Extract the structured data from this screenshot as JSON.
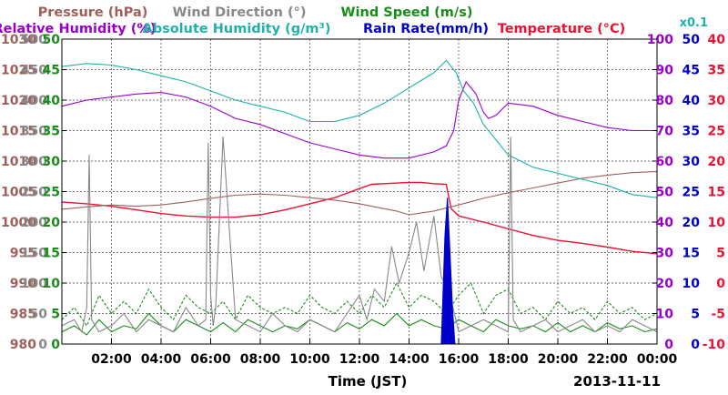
{
  "chart_data": {
    "type": "line",
    "title_rows": [
      [
        {
          "text": "Pressure (hPa)",
          "color": "#a0605a"
        },
        {
          "text": "Wind Direction (°)",
          "color": "#888888"
        },
        {
          "text": "Wind Speed (m/s)",
          "color": "#1a8c1a"
        }
      ],
      [
        {
          "text": "Relative Humidity (%)",
          "color": "#9900cc"
        },
        {
          "text": "Absolute Humidity (g/m³)",
          "color": "#20b2aa"
        },
        {
          "text": "Rain Rate(mm/h)",
          "color": "#0000cc"
        },
        {
          "text": "Temperature (°C)",
          "color": "#ee1133"
        }
      ]
    ],
    "abs_humidity_scale_note": "x0.1",
    "xlabel": "Time (JST)",
    "date_label": "2013-11-11",
    "x_range_hours": [
      0,
      24
    ],
    "x_ticks": [
      "02:00",
      "04:00",
      "06:00",
      "08:00",
      "10:00",
      "12:00",
      "14:00",
      "16:00",
      "18:00",
      "20:00",
      "22:00",
      "00:00"
    ],
    "grid": true,
    "axes": {
      "pressure": {
        "color": "#a0605a",
        "ticks": [
          "980",
          "985",
          "990",
          "995",
          "1000",
          "1005",
          "1010",
          "1015",
          "1020",
          "1025",
          "1030"
        ],
        "range": [
          980,
          1030
        ],
        "side": "left"
      },
      "wind_direction": {
        "color": "#888888",
        "ticks": [
          "0",
          "50",
          "100",
          "150",
          "200",
          "250",
          "300",
          "350",
          "400",
          "450",
          "500"
        ],
        "range": [
          0,
          500
        ],
        "side": "left"
      },
      "wind_speed": {
        "color": "#1a8c1a",
        "ticks": [
          "0",
          "5",
          "10",
          "15",
          "20",
          "25",
          "30",
          "35",
          "40",
          "45",
          "50"
        ],
        "range": [
          0,
          50
        ],
        "side": "left"
      },
      "relative_humidity": {
        "color": "#9900cc",
        "ticks": [
          "0",
          "10",
          "20",
          "30",
          "40",
          "50",
          "60",
          "70",
          "80",
          "90",
          "100"
        ],
        "range": [
          0,
          100
        ],
        "side": "right"
      },
      "rain_rate": {
        "color": "#0000cc",
        "ticks": [
          "0",
          "5",
          "10",
          "15",
          "20",
          "25",
          "30",
          "35",
          "40",
          "45",
          "50"
        ],
        "range": [
          0,
          50
        ],
        "side": "right"
      },
      "temperature": {
        "color": "#ee1133",
        "ticks": [
          "-10",
          "-5",
          "0",
          "5",
          "10",
          "15",
          "20",
          "25",
          "30",
          "35",
          "40"
        ],
        "range": [
          -10,
          40
        ],
        "side": "right"
      }
    },
    "series": [
      {
        "name": "Temperature",
        "color": "#ee1133",
        "axis": "temperature",
        "x": [
          0,
          1,
          2,
          3,
          4,
          5,
          6,
          7,
          8,
          9,
          10,
          11,
          12,
          12.5,
          13,
          14,
          14.5,
          15,
          15.5,
          15.7,
          16,
          17,
          18,
          19,
          20,
          21,
          22,
          23,
          24
        ],
        "y": [
          13.3,
          13,
          12.6,
          12,
          11.4,
          11,
          10.8,
          10.8,
          11.2,
          12,
          13,
          14,
          15.5,
          16.2,
          16.3,
          16.5,
          16.5,
          16.3,
          16.2,
          12.2,
          11,
          10,
          8.9,
          7.8,
          7,
          6.5,
          5.9,
          5.2,
          4.8
        ]
      },
      {
        "name": "Pressure",
        "color": "#a0605a",
        "axis": "pressure",
        "x": [
          0,
          1,
          2,
          3,
          4,
          5,
          6,
          7,
          8,
          9,
          10,
          11,
          12,
          13,
          13.5,
          14,
          15,
          16,
          17,
          18,
          19,
          20,
          21,
          22,
          23,
          24
        ],
        "y": [
          1002.1,
          1002.5,
          1002.8,
          1002.6,
          1002.8,
          1003.3,
          1003.9,
          1004.4,
          1004.6,
          1004.4,
          1004,
          1003.6,
          1003,
          1002.2,
          1001.8,
          1001.2,
          1001.8,
          1002.8,
          1003.9,
          1004.8,
          1005.6,
          1006.4,
          1007.2,
          1007.7,
          1008.1,
          1008.3
        ]
      },
      {
        "name": "Relative Humidity",
        "color": "#9900cc",
        "axis": "relative_humidity",
        "x": [
          0,
          1,
          2,
          3,
          4,
          5,
          6,
          7,
          8,
          9,
          10,
          11,
          12,
          13,
          14,
          15,
          15.5,
          15.8,
          16,
          16.3,
          16.7,
          17,
          17.2,
          17.5,
          18,
          19,
          20,
          21,
          22,
          23,
          24
        ],
        "y": [
          78,
          80,
          81,
          82,
          82.5,
          81,
          78,
          74,
          72,
          69,
          66,
          64,
          62,
          61,
          61,
          63,
          65,
          70,
          80,
          86,
          82,
          76,
          74,
          75,
          79,
          78,
          75,
          73,
          71,
          70,
          70
        ]
      },
      {
        "name": "Absolute Humidity",
        "color": "#20b2aa",
        "axis": "relative_humidity",
        "x": [
          0,
          1,
          2,
          3,
          4,
          5,
          6,
          7,
          8,
          9,
          10,
          11,
          12,
          13,
          14,
          15,
          15.5,
          15.9,
          16.2,
          16.6,
          17,
          17.5,
          18,
          18.5,
          19,
          20,
          21,
          22,
          23,
          24
        ],
        "y": [
          91,
          92,
          91.5,
          90,
          88,
          86,
          83,
          80,
          78,
          76,
          73,
          73,
          75,
          79,
          84,
          89,
          93,
          89,
          83,
          79,
          72,
          67,
          62,
          60,
          58,
          56,
          54,
          52,
          49,
          48
        ]
      },
      {
        "name": "Wind Speed",
        "color": "#1a8c1a",
        "axis": "wind_speed",
        "x": [
          0,
          0.5,
          1,
          1.5,
          2,
          2.5,
          3,
          3.5,
          4,
          4.5,
          5,
          5.5,
          6,
          6.5,
          7,
          7.5,
          8,
          8.5,
          9,
          9.5,
          10,
          10.5,
          11,
          11.5,
          12,
          12.5,
          13,
          13.5,
          14,
          14.5,
          15,
          15.5,
          16,
          16.5,
          17,
          17.5,
          18,
          18.5,
          19,
          19.5,
          20,
          20.5,
          21,
          21.5,
          22,
          22.5,
          23,
          23.5,
          24
        ],
        "y": [
          2,
          3,
          1.5,
          4,
          2,
          3,
          2.5,
          5,
          3,
          2,
          4,
          3,
          2,
          3.5,
          2,
          4,
          3,
          2,
          3,
          2.5,
          4,
          3,
          2,
          3.5,
          2.5,
          4,
          3,
          5,
          3,
          4,
          3,
          2.5,
          4,
          3,
          2,
          4,
          3,
          2.5,
          3,
          2,
          3.5,
          2,
          3,
          2,
          3.5,
          2.5,
          3,
          2,
          2.5
        ]
      },
      {
        "name": "Wind Speed (gust)",
        "color": "#1a8c1a",
        "dashed": true,
        "axis": "wind_speed",
        "x": [
          0,
          0.5,
          1,
          1.5,
          2,
          2.5,
          3,
          3.5,
          4,
          4.5,
          5,
          5.5,
          6,
          6.5,
          7,
          7.5,
          8,
          8.5,
          9,
          9.5,
          10,
          10.5,
          11,
          11.5,
          12,
          12.5,
          13,
          13.5,
          14,
          14.5,
          15,
          15.5,
          16,
          16.5,
          17,
          17.5,
          18,
          18.5,
          19,
          19.5,
          20,
          20.5,
          21,
          21.5,
          22,
          22.5,
          23,
          23.5,
          24
        ],
        "y": [
          4,
          6,
          3,
          8,
          5,
          7,
          5,
          9,
          6,
          4,
          8,
          6,
          5,
          7,
          4,
          8,
          6,
          5,
          6,
          5,
          8,
          6,
          5,
          7,
          5,
          8,
          6,
          10,
          6,
          8,
          7,
          5,
          8,
          10,
          5,
          8,
          9,
          5,
          6,
          4,
          7,
          5,
          6,
          4,
          7,
          5,
          6,
          4,
          5
        ]
      },
      {
        "name": "Wind Direction",
        "color": "#888888",
        "axis": "wind_direction",
        "x": [
          0,
          0.5,
          0.8,
          1,
          1.1,
          1.2,
          1.5,
          2,
          2.5,
          3,
          3.5,
          4,
          4.5,
          5,
          5.5,
          5.8,
          5.9,
          6,
          6.1,
          6.2,
          6.5,
          7,
          7.5,
          8,
          8.5,
          9,
          9.5,
          10,
          10.5,
          11,
          11.5,
          12,
          12.3,
          12.6,
          13,
          13.3,
          13.6,
          14,
          14.3,
          14.6,
          15,
          15.3,
          15.6,
          16,
          16.5,
          17,
          17.5,
          18,
          18.1,
          18.2,
          18.5,
          19,
          19.5,
          20,
          20.5,
          21,
          21.5,
          22,
          22.5,
          23,
          23.5,
          24
        ],
        "y": [
          30,
          40,
          20,
          60,
          310,
          40,
          20,
          30,
          50,
          20,
          40,
          30,
          20,
          60,
          30,
          40,
          330,
          80,
          30,
          60,
          340,
          40,
          30,
          20,
          50,
          30,
          20,
          40,
          30,
          20,
          50,
          80,
          40,
          90,
          70,
          160,
          100,
          150,
          200,
          120,
          210,
          110,
          90,
          20,
          30,
          40,
          30,
          20,
          340,
          40,
          20,
          30,
          40,
          20,
          30,
          40,
          20,
          30,
          20,
          40,
          30,
          20
        ]
      },
      {
        "name": "Rain Rate",
        "color": "#0000cc",
        "axis": "rain_rate",
        "filled": true,
        "x": [
          15.3,
          15.45,
          15.55,
          15.65,
          15.75,
          15.85
        ],
        "y": [
          0,
          18,
          24,
          15,
          6,
          0
        ]
      }
    ]
  }
}
